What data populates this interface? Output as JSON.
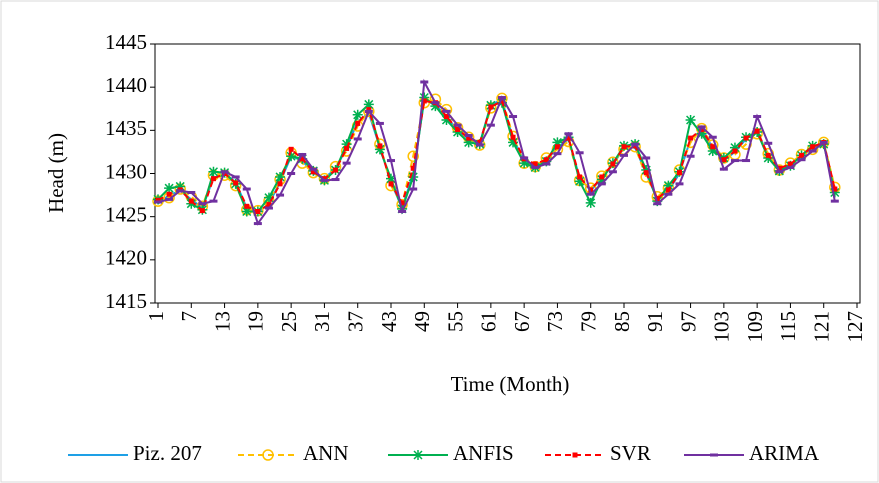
{
  "chart_data": {
    "type": "line",
    "xlabel": "Time (Month)",
    "ylabel": "Head (m)",
    "x": [
      1,
      3,
      5,
      7,
      9,
      11,
      13,
      15,
      17,
      19,
      21,
      23,
      25,
      27,
      29,
      31,
      33,
      35,
      37,
      39,
      41,
      43,
      45,
      47,
      49,
      51,
      53,
      55,
      57,
      59,
      61,
      63,
      65,
      67,
      69,
      71,
      73,
      75,
      77,
      79,
      81,
      83,
      85,
      87,
      89,
      91,
      93,
      95,
      97,
      99,
      101,
      103,
      105,
      107,
      109,
      111,
      113,
      115,
      117,
      119,
      121,
      123
    ],
    "xlim": [
      1,
      127
    ],
    "xticks": [
      1,
      7,
      13,
      19,
      25,
      31,
      37,
      43,
      49,
      55,
      61,
      67,
      73,
      79,
      85,
      91,
      97,
      103,
      109,
      115,
      121,
      127
    ],
    "ylim": [
      1415,
      1445
    ],
    "yticks": [
      1415,
      1420,
      1425,
      1430,
      1435,
      1440,
      1445
    ],
    "legend": "bottom",
    "series": [
      {
        "name": "Piz. 207",
        "color": "#1ea0e6",
        "dash": false,
        "marker": "none",
        "values": [
          1426.5,
          1427.5,
          1428,
          1427,
          1426,
          1429.5,
          1430,
          1429,
          1426,
          1425.5,
          1426.5,
          1429,
          1432,
          1431.5,
          1430,
          1429.5,
          1430.5,
          1433,
          1436,
          1437,
          1433,
          1429,
          1426,
          1430,
          1438.5,
          1438,
          1436.5,
          1435,
          1434,
          1433.5,
          1438,
          1438.5,
          1434,
          1431.5,
          1431,
          1431.5,
          1433,
          1434,
          1429.5,
          1428,
          1429.5,
          1431,
          1433,
          1433,
          1430,
          1427,
          1428,
          1430,
          1434,
          1435,
          1433,
          1431.5,
          1432.5,
          1434,
          1435,
          1432,
          1430.5,
          1431,
          1432,
          1433,
          1433.5,
          1428
        ]
      },
      {
        "name": "ANN",
        "color": "#ffc000",
        "dash": true,
        "marker": "circle",
        "values": [
          1426.8,
          1427.2,
          1428.2,
          1427.3,
          1426.2,
          1429.8,
          1429.8,
          1428.6,
          1425.8,
          1425.7,
          1426.8,
          1429.3,
          1432.4,
          1431.2,
          1430.1,
          1429.4,
          1430.8,
          1432.6,
          1435.5,
          1437.2,
          1433.4,
          1428.6,
          1426.4,
          1432,
          1438.2,
          1438.6,
          1437.4,
          1435.3,
          1434.2,
          1433.3,
          1437.6,
          1438.7,
          1434.3,
          1431.2,
          1430.8,
          1431.8,
          1432.8,
          1433.7,
          1429.2,
          1428.3,
          1429.7,
          1431.3,
          1432.8,
          1433.1,
          1429.6,
          1427.3,
          1428.3,
          1430.4,
          1433.6,
          1435.2,
          1433.3,
          1431.8,
          1432.2,
          1433.4,
          1434.6,
          1432.3,
          1430.4,
          1431.2,
          1432.2,
          1432.8,
          1433.6,
          1428.4
        ]
      },
      {
        "name": "ANFIS",
        "color": "#00b050",
        "dash": false,
        "marker": "asterisk",
        "values": [
          1427,
          1428.3,
          1428.5,
          1426.5,
          1425.8,
          1430.2,
          1430.1,
          1428.8,
          1425.6,
          1425.6,
          1427.2,
          1429.6,
          1432,
          1431.7,
          1430.3,
          1429.2,
          1430.4,
          1433.4,
          1436.8,
          1438,
          1432.8,
          1429.4,
          1425.9,
          1429.6,
          1438.8,
          1437.8,
          1436.2,
          1434.8,
          1433.6,
          1433.4,
          1437.9,
          1438.2,
          1433.6,
          1431.2,
          1430.7,
          1431.4,
          1433.6,
          1434.2,
          1429.1,
          1426.6,
          1429.3,
          1431.2,
          1433.2,
          1433.4,
          1430.4,
          1426.8,
          1428.6,
          1430.2,
          1436.2,
          1434.6,
          1432.6,
          1431.8,
          1433,
          1434.2,
          1434.8,
          1431.8,
          1430.3,
          1430.9,
          1432.1,
          1433.2,
          1433.4,
          1427.8
        ]
      },
      {
        "name": "SVR",
        "color": "#ff0000",
        "dash": true,
        "marker": "square",
        "values": [
          1426.9,
          1427.6,
          1428.1,
          1426.8,
          1425.7,
          1429.4,
          1430,
          1428.9,
          1426.2,
          1425.6,
          1426.4,
          1428.8,
          1432.8,
          1431.7,
          1430.2,
          1429.4,
          1430.4,
          1432.9,
          1435.8,
          1437.4,
          1433.2,
          1428.8,
          1426.6,
          1430.6,
          1438.4,
          1438.2,
          1436.6,
          1435.1,
          1434.1,
          1433.6,
          1437.7,
          1438.4,
          1434.2,
          1431.7,
          1431.1,
          1431.6,
          1433.1,
          1434.1,
          1429.6,
          1428.1,
          1429.6,
          1431.1,
          1433.1,
          1433.2,
          1430.1,
          1427.1,
          1428.1,
          1430.1,
          1434.1,
          1435.1,
          1433.1,
          1431.6,
          1432.6,
          1434.1,
          1434.9,
          1432.1,
          1430.6,
          1431.1,
          1432.1,
          1433.1,
          1433.6,
          1428.2
        ]
      },
      {
        "name": "ARIMA",
        "color": "#7030a0",
        "dash": false,
        "marker": "dash",
        "values": [
          1426.7,
          1427,
          1428,
          1427.8,
          1426.5,
          1426.8,
          1430.2,
          1429.6,
          1428.2,
          1424.2,
          1426,
          1427.5,
          1430,
          1432.2,
          1430.5,
          1429.2,
          1429.3,
          1431.2,
          1434,
          1437.2,
          1435.8,
          1431.5,
          1425.6,
          1428.2,
          1440.6,
          1438.2,
          1437.2,
          1435.6,
          1434.4,
          1433.3,
          1435.6,
          1438.8,
          1436.6,
          1431.8,
          1430.7,
          1431.1,
          1432.3,
          1434.6,
          1432.4,
          1427.6,
          1428.8,
          1430.2,
          1432.1,
          1433.4,
          1431.8,
          1426.5,
          1427.6,
          1428.8,
          1432,
          1435.4,
          1434.2,
          1430.5,
          1431.5,
          1431.5,
          1436.6,
          1433.5,
          1430.2,
          1430.7,
          1431.6,
          1432.6,
          1433.6,
          1426.8
        ]
      }
    ]
  }
}
